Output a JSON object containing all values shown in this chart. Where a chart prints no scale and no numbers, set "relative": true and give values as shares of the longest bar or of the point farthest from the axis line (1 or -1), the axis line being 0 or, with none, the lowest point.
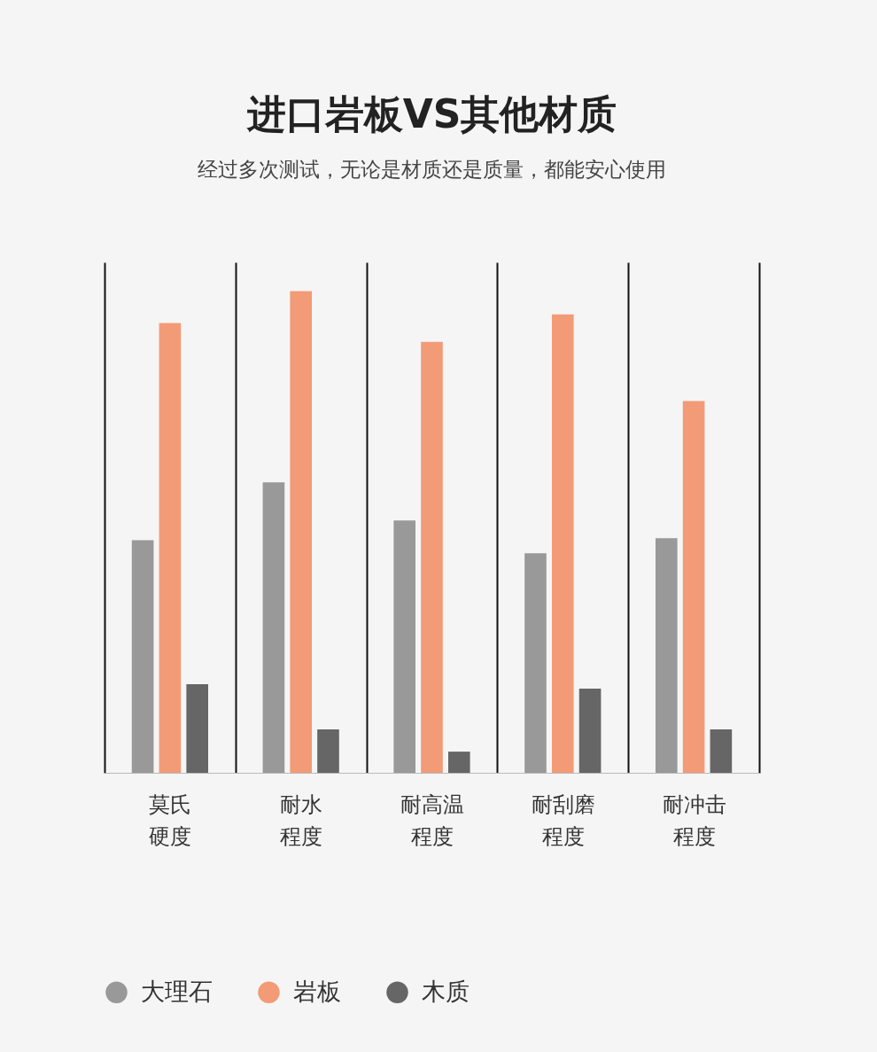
{
  "chart_data": {
    "type": "bar",
    "title": "进口岩板VS其他材质",
    "subtitle": "经过多次测试，无论是材质还是质量，都能安心使用",
    "categories": [
      "莫氏硬度",
      "耐水程度",
      "耐高温程度",
      "耐刮磨程度",
      "耐冲击程度"
    ],
    "relative": true,
    "grid": "x",
    "legend": "bottom",
    "series": [
      {
        "name": "大理石",
        "color": "#999999",
        "values": [
          0.483,
          0.603,
          0.524,
          0.456,
          0.487
        ]
      },
      {
        "name": "岩板",
        "color": "#f29b76",
        "values": [
          0.934,
          1,
          0.895,
          0.952,
          0.772
        ]
      },
      {
        "name": "木质",
        "color": "#666666",
        "values": [
          0.184,
          0.09,
          0.044,
          0.175,
          0.09
        ]
      }
    ]
  }
}
